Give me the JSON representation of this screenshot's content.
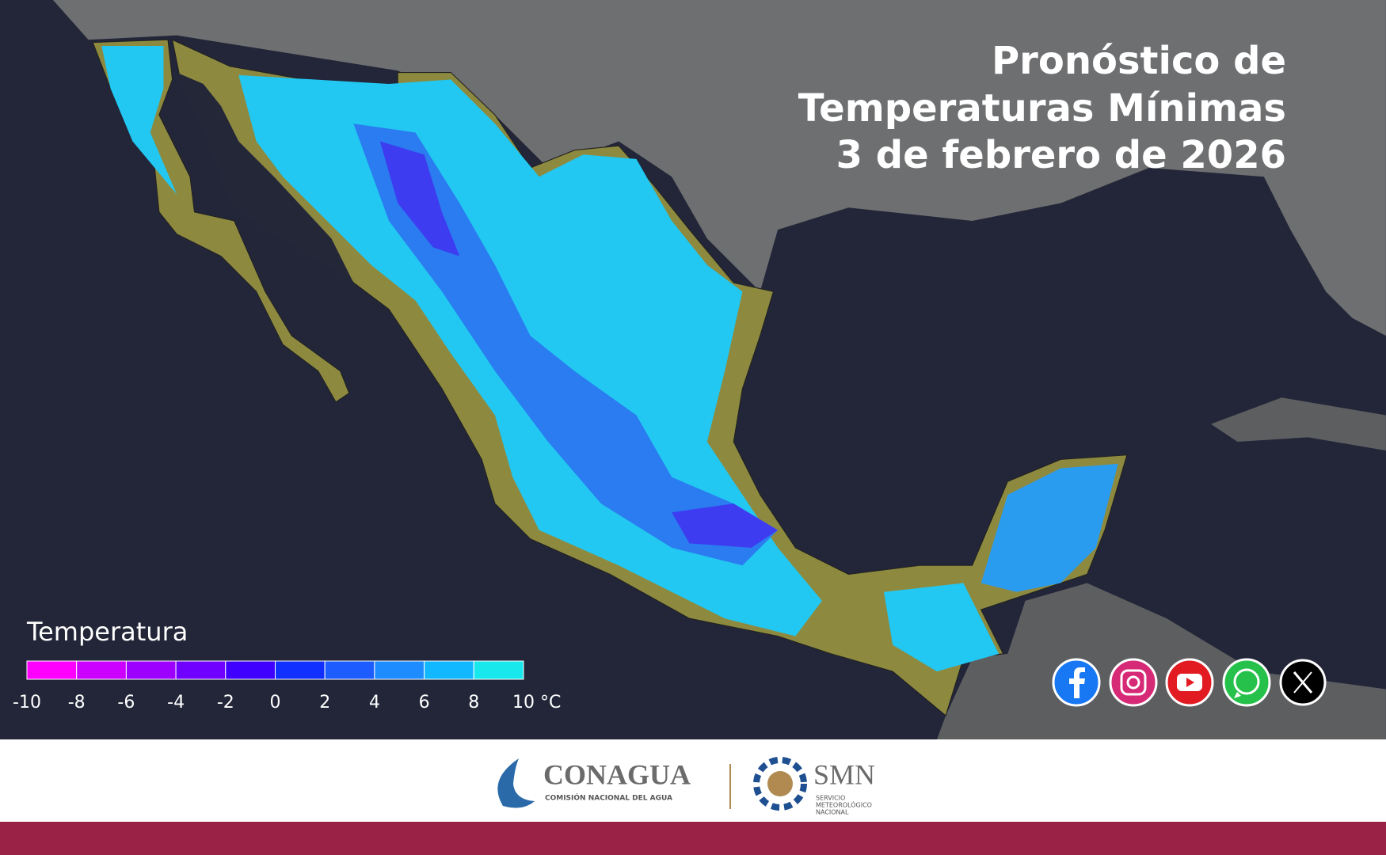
{
  "header": {
    "title_lines": [
      "Pronóstico de",
      "Temperaturas Mínimas",
      "3 de febrero de 2026"
    ]
  },
  "legend": {
    "title": "Temperatura",
    "ticks": [
      -10,
      -8,
      -6,
      -4,
      -2,
      0,
      2,
      4,
      6,
      8,
      {
        "value": 10,
        "label": "10 °C"
      }
    ],
    "colors": [
      "#ff00ff",
      "#cc00ff",
      "#9d00ff",
      "#7000ff",
      "#4000ff",
      "#1030ff",
      "#1d5cff",
      "#1c8cff",
      "#12b8ff",
      "#18e8ec"
    ]
  },
  "footer": {
    "conagua": {
      "name": "CONAGUA",
      "subtitle": "COMISIÓN NACIONAL DEL AGUA"
    },
    "smn": {
      "name": "SMN",
      "subtitle_lines": [
        "SERVICIO",
        "METEOROLÓGICO",
        "NACIONAL"
      ]
    }
  }
}
